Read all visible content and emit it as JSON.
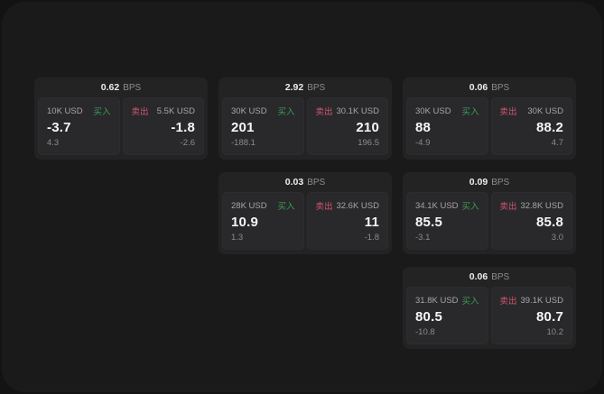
{
  "theme": {
    "backdrop_bg": "#131314",
    "window_bg": "#1a1a1b",
    "card_bg": "#232324",
    "subcard_bg": "#29292b",
    "text_primary": "#f6f6f6",
    "text_secondary": "#a6a6a6",
    "text_muted": "#8b8b8b",
    "buy_color": "#3e9a54",
    "sell_color": "#d1566e"
  },
  "labels": {
    "bps": "BPS",
    "buy": "买入",
    "sell": "卖出"
  },
  "cards": [
    {
      "col": 1,
      "row": 1,
      "bps": "0.62",
      "buy": {
        "size": "10K USD",
        "price": "-3.7",
        "delta": "4.3"
      },
      "sell": {
        "size": "5.5K USD",
        "price": "-1.8",
        "delta": "-2.6"
      }
    },
    {
      "col": 2,
      "row": 1,
      "bps": "2.92",
      "buy": {
        "size": "30K USD",
        "price": "201",
        "delta": "-188.1"
      },
      "sell": {
        "size": "30.1K USD",
        "price": "210",
        "delta": "196.5"
      }
    },
    {
      "col": 3,
      "row": 1,
      "bps": "0.06",
      "buy": {
        "size": "30K USD",
        "price": "88",
        "delta": "-4.9"
      },
      "sell": {
        "size": "30K USD",
        "price": "88.2",
        "delta": "4.7"
      }
    },
    {
      "col": 2,
      "row": 2,
      "bps": "0.03",
      "buy": {
        "size": "28K USD",
        "price": "10.9",
        "delta": "1.3"
      },
      "sell": {
        "size": "32.6K USD",
        "price": "11",
        "delta": "-1.8"
      }
    },
    {
      "col": 3,
      "row": 2,
      "bps": "0.09",
      "buy": {
        "size": "34.1K USD",
        "price": "85.5",
        "delta": "-3.1"
      },
      "sell": {
        "size": "32.8K USD",
        "price": "85.8",
        "delta": "3.0"
      }
    },
    {
      "col": 3,
      "row": 3,
      "bps": "0.06",
      "buy": {
        "size": "31.8K USD",
        "price": "80.5",
        "delta": "-10.8"
      },
      "sell": {
        "size": "39.1K USD",
        "price": "80.7",
        "delta": "10.2"
      }
    }
  ]
}
